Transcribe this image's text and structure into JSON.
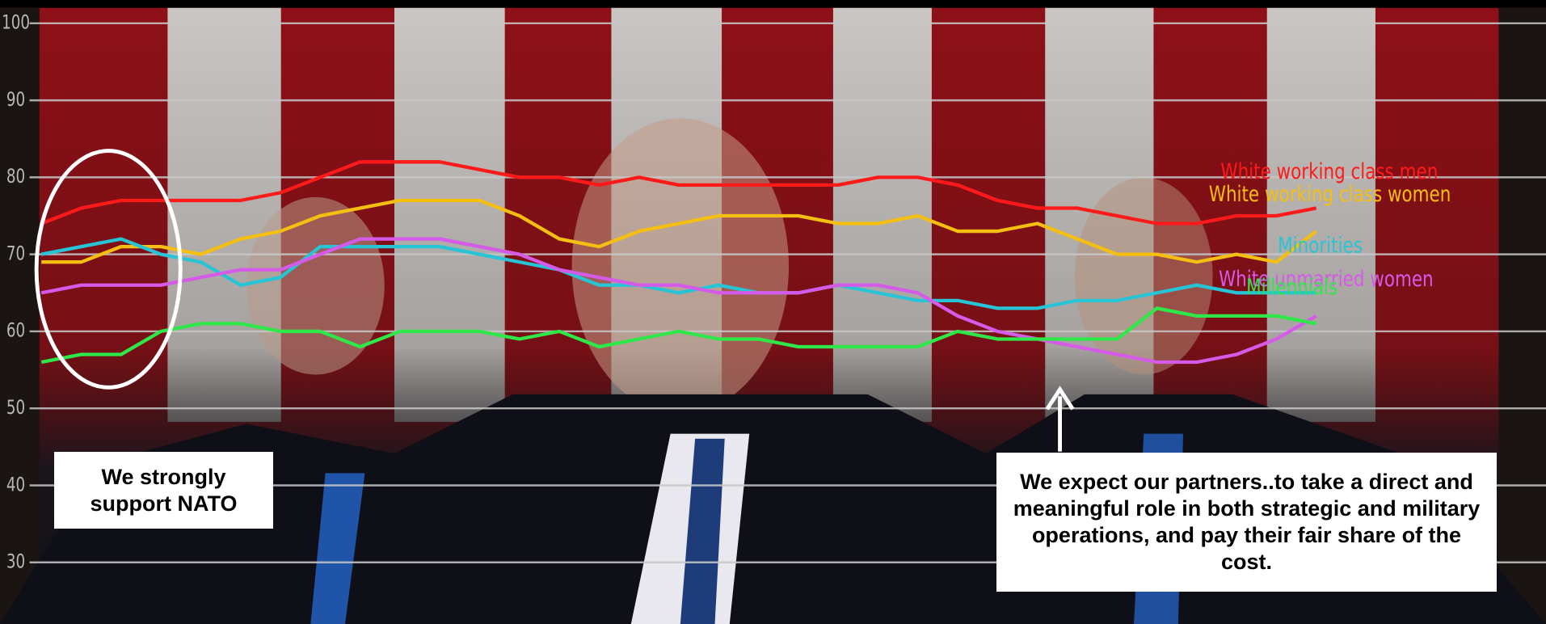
{
  "chart_data": {
    "type": "line",
    "ylim": [
      22,
      102
    ],
    "yticks": [
      30,
      40,
      50,
      60,
      70,
      80,
      90,
      100
    ],
    "grid": true,
    "series": [
      {
        "name": "White working class men",
        "color": "#ff1a1a",
        "values": [
          74,
          76,
          77,
          77,
          77,
          77,
          78,
          80,
          82,
          82,
          82,
          81,
          80,
          80,
          79,
          80,
          79,
          79,
          79,
          79,
          79,
          80,
          80,
          79,
          77,
          76,
          76,
          75,
          74,
          74,
          75,
          75,
          76
        ]
      },
      {
        "name": "White working class women",
        "color": "#f5bf12",
        "values": [
          69,
          69,
          71,
          71,
          70,
          72,
          73,
          75,
          76,
          77,
          77,
          77,
          75,
          72,
          71,
          73,
          74,
          75,
          75,
          75,
          74,
          74,
          75,
          73,
          73,
          74,
          72,
          70,
          70,
          69,
          70,
          69,
          73
        ]
      },
      {
        "name": "Minorities",
        "color": "#27c4d6",
        "values": [
          70,
          71,
          72,
          70,
          69,
          66,
          67,
          71,
          71,
          71,
          71,
          70,
          69,
          68,
          66,
          66,
          65,
          66,
          65,
          65,
          66,
          65,
          64,
          64,
          63,
          63,
          64,
          64,
          65,
          66,
          65,
          65,
          65
        ]
      },
      {
        "name": "White unmarried women",
        "color": "#d65ae8",
        "values": [
          65,
          66,
          66,
          66,
          67,
          68,
          68,
          70,
          72,
          72,
          72,
          71,
          70,
          68,
          67,
          66,
          66,
          65,
          65,
          65,
          66,
          66,
          65,
          62,
          60,
          59,
          58,
          57,
          56,
          56,
          57,
          59,
          62
        ]
      },
      {
        "name": "Millennials",
        "color": "#2ee84a",
        "values": [
          56,
          57,
          57,
          60,
          61,
          61,
          60,
          60,
          58,
          60,
          60,
          60,
          59,
          60,
          58,
          59,
          60,
          59,
          59,
          58,
          58,
          58,
          58,
          60,
          59,
          59,
          59,
          59,
          63,
          62,
          62,
          62,
          61
        ]
      }
    ],
    "annotations": [
      "We strongly support NATO",
      "We expect our partners..to take a direct and meaningful role in both strategic and military operations, and pay their fair share of the cost."
    ]
  }
}
